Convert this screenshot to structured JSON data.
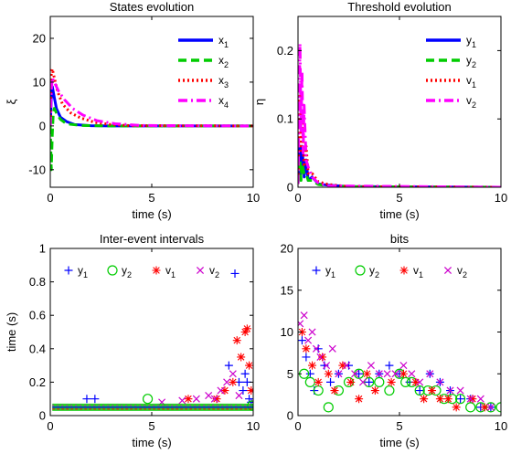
{
  "chart_data": [
    {
      "type": "line",
      "title": "States evolution",
      "xlabel": "time (s)",
      "ylabel": "ξ",
      "xlim": [
        0,
        10
      ],
      "ylim": [
        -14,
        25
      ],
      "xticks": [
        "0",
        "5",
        "10"
      ],
      "yticks": [
        "-10",
        "0",
        "10",
        "20"
      ],
      "legend_position": "top-right",
      "series": [
        {
          "name": "x",
          "sub": "1",
          "color": "#0000ff",
          "style": "solid",
          "x": [
            0,
            0.05,
            0.1,
            0.2,
            0.3,
            0.5,
            0.8,
            1.2,
            2,
            3,
            5,
            10
          ],
          "y": [
            0,
            6,
            9,
            6.5,
            4,
            2,
            1,
            0.3,
            0.05,
            0,
            0,
            0
          ]
        },
        {
          "name": "x",
          "sub": "2",
          "color": "#00cc00",
          "style": "dash",
          "x": [
            0,
            0.05,
            0.1,
            0.15,
            0.2,
            0.3,
            0.5,
            0.8,
            1.5,
            3,
            5,
            10
          ],
          "y": [
            0,
            -10,
            -2,
            3,
            4,
            3,
            1.5,
            0.5,
            0.1,
            0,
            0,
            0
          ]
        },
        {
          "name": "x",
          "sub": "3",
          "color": "#ff0000",
          "style": "dot",
          "x": [
            0,
            0.05,
            0.1,
            0.2,
            0.35,
            0.6,
            1,
            1.5,
            2.2,
            3,
            4,
            10
          ],
          "y": [
            0,
            12,
            13,
            11,
            8,
            5,
            3,
            1.8,
            0.8,
            0.3,
            0.05,
            0
          ]
        },
        {
          "name": "x",
          "sub": "4",
          "color": "#ff00ff",
          "style": "dashdot",
          "x": [
            0,
            0.05,
            0.1,
            0.2,
            0.4,
            0.7,
            1.1,
            1.6,
            2.3,
            3.2,
            4.5,
            10
          ],
          "y": [
            0,
            8,
            11,
            10,
            8,
            6,
            4,
            2.5,
            1.2,
            0.5,
            0.1,
            0
          ]
        }
      ]
    },
    {
      "type": "line",
      "title": "Threshold evolution",
      "xlabel": "time (s)",
      "ylabel": "η",
      "xlim": [
        0,
        10
      ],
      "ylim": [
        0,
        0.25
      ],
      "xticks": [
        "0",
        "5",
        "10"
      ],
      "yticks": [
        "0",
        "0.1",
        "0.2"
      ],
      "legend_position": "top-right",
      "series": [
        {
          "name": "y",
          "sub": "1",
          "color": "#0000ff",
          "style": "solid",
          "x": [
            0,
            0.1,
            0.15,
            0.2,
            0.3,
            0.4,
            0.5,
            0.7,
            1,
            1.5,
            2.5,
            10
          ],
          "y": [
            0.005,
            0.06,
            0.02,
            0.06,
            0.015,
            0.04,
            0.01,
            0.015,
            0.005,
            0.003,
            0.001,
            0
          ]
        },
        {
          "name": "y",
          "sub": "2",
          "color": "#00cc00",
          "style": "dash",
          "x": [
            0,
            0.1,
            0.15,
            0.2,
            0.3,
            0.4,
            0.5,
            0.7,
            1,
            1.5,
            2.5,
            10
          ],
          "y": [
            0.005,
            0.04,
            0.01,
            0.035,
            0.02,
            0.02,
            0.01,
            0.01,
            0.004,
            0.002,
            0.001,
            0
          ]
        },
        {
          "name": "v",
          "sub": "1",
          "color": "#ff0000",
          "style": "dot",
          "x": [
            0,
            0.1,
            0.15,
            0.2,
            0.3,
            0.4,
            0.5,
            0.7,
            1,
            1.5,
            2.5,
            10
          ],
          "y": [
            0.005,
            0.14,
            0.05,
            0.1,
            0.03,
            0.06,
            0.02,
            0.02,
            0.008,
            0.004,
            0.001,
            0
          ]
        },
        {
          "name": "v",
          "sub": "2",
          "color": "#ff00ff",
          "style": "dashdot",
          "x": [
            0,
            0.1,
            0.15,
            0.2,
            0.25,
            0.3,
            0.4,
            0.5,
            0.7,
            1,
            1.5,
            10
          ],
          "y": [
            0.005,
            0.21,
            0.08,
            0.17,
            0.05,
            0.12,
            0.04,
            0.03,
            0.015,
            0.006,
            0.002,
            0
          ]
        }
      ]
    },
    {
      "type": "scatter",
      "title": "Inter-event intervals",
      "xlabel": "time (s)",
      "ylabel": "time (s)",
      "xlim": [
        0,
        10
      ],
      "ylim": [
        0,
        1
      ],
      "xticks": [
        "0",
        "5",
        "10"
      ],
      "yticks": [
        "0",
        "0.2",
        "0.4",
        "0.6",
        "0.8",
        "1"
      ],
      "legend_position": "top",
      "series": [
        {
          "name": "y",
          "sub": "1",
          "color": "#0000ff",
          "marker": "plus",
          "x": [
            1.8,
            2.2,
            8.8,
            9.1,
            9.3,
            9.5,
            9.6,
            9.7,
            9.8,
            9.9
          ],
          "y": [
            0.1,
            0.1,
            0.3,
            0.85,
            0.2,
            0.15,
            0.25,
            0.2,
            0.1,
            0.08
          ]
        },
        {
          "name": "y",
          "sub": "2",
          "color": "#00cc00",
          "marker": "circle",
          "x": [
            4.8,
            9.95
          ],
          "y": [
            0.1,
            0.06
          ]
        },
        {
          "name": "v",
          "sub": "1",
          "color": "#ff0000",
          "marker": "star",
          "x": [
            6.8,
            8.2,
            8.6,
            9.0,
            9.2,
            9.4,
            9.6,
            9.7,
            9.8,
            9.9
          ],
          "y": [
            0.1,
            0.1,
            0.15,
            0.2,
            0.45,
            0.35,
            0.5,
            0.52,
            0.3,
            0.15
          ]
        },
        {
          "name": "v",
          "sub": "2",
          "color": "#cc00cc",
          "marker": "cross",
          "x": [
            5.5,
            6.5,
            7.2,
            7.8,
            8.1,
            8.4,
            8.7,
            9.0,
            9.3
          ],
          "y": [
            0.08,
            0.09,
            0.1,
            0.12,
            0.1,
            0.15,
            0.2,
            0.25,
            0.12
          ]
        }
      ],
      "baseline": {
        "y": 0.05,
        "xmin": 0.1,
        "xmax": 10
      }
    },
    {
      "type": "scatter",
      "title": "bits",
      "xlabel": "time (s)",
      "ylabel": "",
      "xlim": [
        0,
        10
      ],
      "ylim": [
        0,
        20
      ],
      "xticks": [
        "0",
        "5",
        "10"
      ],
      "yticks": [
        "0",
        "5",
        "10",
        "15",
        "20"
      ],
      "legend_position": "top",
      "series": [
        {
          "name": "y",
          "sub": "1",
          "color": "#0000ff",
          "marker": "plus",
          "x": [
            0.2,
            0.4,
            0.6,
            0.8,
            1.0,
            1.3,
            1.6,
            2.0,
            2.5,
            3.0,
            3.5,
            4.0,
            4.5,
            5.0,
            5.5,
            6.0,
            6.5,
            7.0,
            7.5,
            8.0,
            8.5,
            9.0,
            9.5
          ],
          "y": [
            9,
            7,
            5,
            3,
            8,
            6,
            4,
            5,
            6,
            5,
            4,
            5,
            6,
            5,
            4,
            3,
            5,
            4,
            3,
            2,
            2,
            1,
            1
          ]
        },
        {
          "name": "y",
          "sub": "2",
          "color": "#00cc00",
          "marker": "circle",
          "x": [
            0.3,
            0.6,
            1.0,
            1.5,
            2.0,
            2.5,
            3.0,
            3.5,
            4.0,
            4.5,
            5.0,
            5.3,
            5.6,
            6.0,
            6.4,
            6.8,
            7.2,
            7.6,
            8.0,
            8.5,
            9.0,
            9.5,
            10.0
          ],
          "y": [
            5,
            4,
            3,
            1,
            3,
            4,
            5,
            4,
            4,
            3,
            5,
            4,
            4,
            3,
            3,
            3,
            2,
            2,
            2,
            1,
            1,
            1,
            1
          ]
        },
        {
          "name": "v",
          "sub": "1",
          "color": "#ff0000",
          "marker": "star",
          "x": [
            0.2,
            0.4,
            0.7,
            1.0,
            1.2,
            1.5,
            1.8,
            2.2,
            2.6,
            3.0,
            3.4,
            3.8,
            4.6,
            5.2,
            5.8,
            6.2,
            6.6,
            7.0,
            7.4,
            7.8,
            8.6,
            9.2
          ],
          "y": [
            10,
            8,
            6,
            4,
            7,
            5,
            3,
            6,
            4,
            2,
            5,
            3,
            4,
            5,
            4,
            2,
            3,
            2,
            2,
            1,
            2,
            1
          ]
        },
        {
          "name": "v",
          "sub": "2",
          "color": "#cc00cc",
          "marker": "cross",
          "x": [
            0.1,
            0.3,
            0.5,
            0.7,
            0.9,
            1.1,
            1.4,
            1.7,
            2.0,
            2.4,
            2.8,
            3.2,
            3.6,
            4.0,
            4.4,
            4.8,
            5.2,
            5.6,
            6.0,
            6.5,
            7.0,
            7.5,
            8.0,
            8.5,
            9.0,
            9.5
          ],
          "y": [
            11,
            12,
            9,
            10,
            8,
            7,
            6,
            8,
            5,
            6,
            5,
            4,
            6,
            5,
            5,
            5,
            6,
            5,
            4,
            5,
            4,
            3,
            3,
            2,
            2,
            1
          ]
        }
      ]
    }
  ]
}
